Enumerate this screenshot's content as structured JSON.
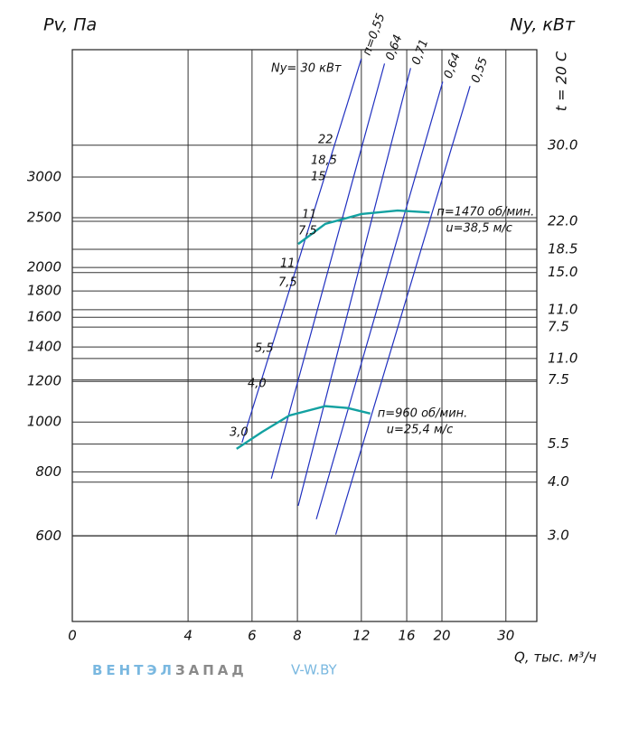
{
  "chart_data": {
    "type": "line",
    "scale": "log",
    "y_label": "Pv, Па",
    "y2_label": "Ny, кВт",
    "temperature_label": "t = 20 С",
    "x_label": "Q, тыс. м³/ч",
    "x_origin_label": "0",
    "xlim": [
      1.92,
      36.5
    ],
    "xticks": [
      4,
      6,
      8,
      12,
      16,
      20,
      30
    ],
    "ylim": [
      409,
      5310
    ],
    "yticks": [
      600,
      800,
      1000,
      1200,
      1400,
      1600,
      1800,
      2000,
      2500,
      3000
    ],
    "ny_ticks": [
      {
        "value": 3460,
        "label": "30.0"
      },
      {
        "value": 2460,
        "label": "22.0"
      },
      {
        "value": 2170,
        "label": "18.5"
      },
      {
        "value": 1955,
        "label": "15.0"
      },
      {
        "value": 1655,
        "label": "11.0"
      },
      {
        "value": 1531,
        "label": "7.5"
      },
      {
        "value": 1330,
        "label": "11.0"
      },
      {
        "value": 1208,
        "label": "7.5"
      },
      {
        "value": 906,
        "label": "5.5"
      },
      {
        "value": 764,
        "label": "4.0"
      },
      {
        "value": 601,
        "label": "3.0"
      }
    ],
    "series": [
      {
        "name": "п=1470 об/мин.",
        "speed_label": "u=38,5 м/с",
        "color": "#13a1a1",
        "x": [
          8.04,
          9.55,
          12.0,
          15.1,
          18.5
        ],
        "values": [
          2222,
          2432,
          2541,
          2582,
          2560
        ]
      },
      {
        "name": "п=960 об/мин.",
        "speed_label": "u=25,4 м/с",
        "color": "#13a1a1",
        "x": [
          5.44,
          6.4,
          7.6,
          9.55,
          11.0,
          12.7
        ],
        "values": [
          887,
          957,
          1030,
          1074,
          1065,
          1039
        ]
      }
    ],
    "efficiency_lines": [
      {
        "name": "п=0,55",
        "color": "#2030c0",
        "x": [
          5.63,
          12.0
        ],
        "values": [
          912,
          5100
        ]
      },
      {
        "name": "0,64",
        "color": "#2030c0",
        "x": [
          6.78,
          13.9
        ],
        "values": [
          776,
          4990
        ]
      },
      {
        "name": "0,71",
        "color": "#2030c0",
        "x": [
          8.04,
          16.4
        ],
        "values": [
          687,
          4890
        ]
      },
      {
        "name": "0,64",
        "color": "#2030c0",
        "x": [
          9.02,
          20.1
        ],
        "values": [
          647,
          4600
        ]
      },
      {
        "name": "0,55",
        "color": "#2030c0",
        "x": [
          10.2,
          23.9
        ],
        "values": [
          604,
          4510
        ]
      }
    ],
    "annotations": [
      "Ny= 30 кВт",
      "22",
      "18,5",
      "15",
      "11",
      "7,5",
      "11",
      "7,5",
      "5,5",
      "4,0",
      "3,0"
    ]
  },
  "brand": {
    "name_light": "ВЕНТЭЛ",
    "name_dark": "ЗАПАД",
    "site": "V-W.BY"
  }
}
